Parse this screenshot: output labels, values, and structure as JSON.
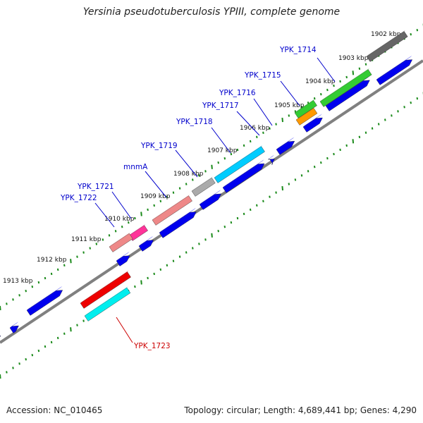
{
  "title": "Yersinia pseudotuberculosis YPIII, complete genome",
  "footer": {
    "accession": "Accession: NC_010465",
    "topology": "Topology: circular; Length: 4,689,441 bp; Genes: 4,290"
  },
  "colors": {
    "backbone": "#808080",
    "tick_mark": "#1a8a1a",
    "label_blue": "#0000cc",
    "label_red": "#cc0000",
    "cds": "#0000ee"
  },
  "scale_labels": [
    "1902 kbp",
    "1903 kbp",
    "1904 kbp",
    "1905 kbp",
    "1906 kbp",
    "1907 kbp",
    "1908 kbp",
    "1909 kbp",
    "1910 kbp",
    "1911 kbp",
    "1912 kbp",
    "1913 kbp"
  ],
  "gene_labels": [
    {
      "name": "YPK_1714",
      "color": "blue"
    },
    {
      "name": "YPK_1715",
      "color": "blue"
    },
    {
      "name": "YPK_1716",
      "color": "blue"
    },
    {
      "name": "YPK_1717",
      "color": "blue"
    },
    {
      "name": "YPK_1718",
      "color": "blue"
    },
    {
      "name": "YPK_1719",
      "color": "blue"
    },
    {
      "name": "mnmA",
      "color": "blue"
    },
    {
      "name": "YPK_1721",
      "color": "blue"
    },
    {
      "name": "YPK_1722",
      "color": "blue"
    },
    {
      "name": "YPK_1723",
      "color": "red"
    }
  ],
  "features": [
    {
      "kind": "gene",
      "color": "#666666"
    },
    {
      "kind": "gene",
      "color": "#33cc33"
    },
    {
      "kind": "gene",
      "color": "#ff9900"
    },
    {
      "kind": "gene",
      "color": "#33cc33"
    },
    {
      "kind": "gene",
      "color": "#00ccff"
    },
    {
      "kind": "gene",
      "color": "#aaaaaa"
    },
    {
      "kind": "gene",
      "color": "#ee8888"
    },
    {
      "kind": "gene",
      "color": "#ff3399"
    },
    {
      "kind": "gene",
      "color": "#ee8888"
    },
    {
      "kind": "gene",
      "color": "#ee0000"
    },
    {
      "kind": "gene",
      "color": "#00eeee"
    }
  ]
}
